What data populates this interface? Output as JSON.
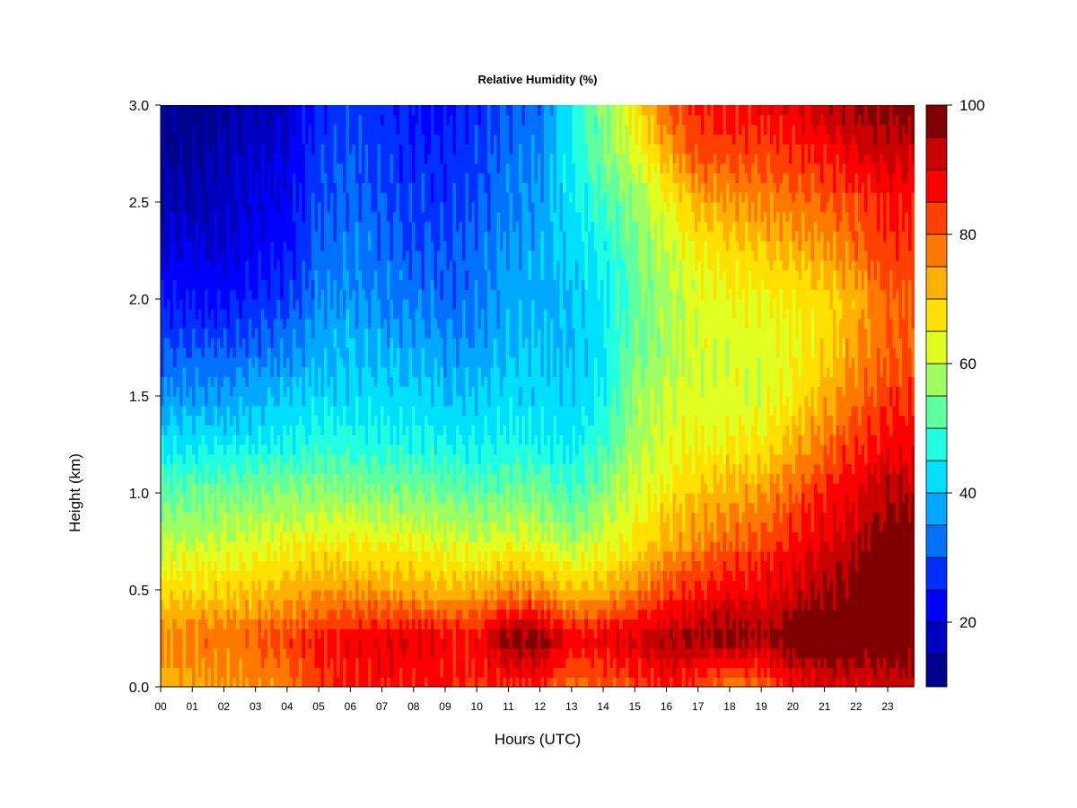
{
  "chart_data": {
    "type": "heatmap",
    "title": "Relative Humidity (%)",
    "xlabel": "Hours (UTC)",
    "ylabel": "Height (km)",
    "xlim": [
      0,
      23.85
    ],
    "ylim": [
      0.0,
      3.0
    ],
    "x_ticks": [
      "00",
      "01",
      "02",
      "03",
      "04",
      "05",
      "06",
      "07",
      "08",
      "09",
      "10",
      "11",
      "12",
      "13",
      "14",
      "15",
      "16",
      "17",
      "18",
      "19",
      "20",
      "21",
      "22",
      "23"
    ],
    "y_ticks": [
      "0.0",
      "0.5",
      "1.0",
      "1.5",
      "2.0",
      "2.5",
      "3.0"
    ],
    "colorbar": {
      "range": [
        10,
        100
      ],
      "levels": [
        10,
        15,
        20,
        25,
        30,
        35,
        40,
        45,
        50,
        55,
        60,
        65,
        70,
        75,
        80,
        85,
        90,
        95,
        100
      ],
      "colors": [
        "#00008F",
        "#0000BF",
        "#0000FF",
        "#0030FF",
        "#0070FF",
        "#00A8FF",
        "#00DFFF",
        "#20FFDF",
        "#60FFA0",
        "#A0FF60",
        "#E0FF20",
        "#FFE000",
        "#FFB000",
        "#FF7800",
        "#FF4000",
        "#FF0000",
        "#C80000",
        "#800000"
      ],
      "tick_labels": [
        "20",
        "40",
        "60",
        "80",
        "100"
      ]
    },
    "hours": [
      0,
      1,
      2,
      3,
      4,
      5,
      6,
      7,
      8,
      9,
      10,
      11,
      12,
      13,
      14,
      15,
      16,
      17,
      18,
      19,
      20,
      21,
      22,
      23
    ],
    "heights_km": [
      0.0,
      0.25,
      0.5,
      0.75,
      1.0,
      1.25,
      1.5,
      1.75,
      2.0,
      2.25,
      2.5,
      2.75,
      3.0
    ],
    "rh_percent": [
      [
        72,
        74,
        74,
        76,
        78,
        84,
        86,
        86,
        86,
        86,
        84,
        84,
        84,
        78,
        80,
        82,
        86,
        82,
        76,
        78,
        88,
        90,
        90,
        92
      ],
      [
        76,
        78,
        78,
        80,
        82,
        86,
        88,
        90,
        90,
        88,
        88,
        98,
        98,
        88,
        90,
        92,
        95,
        96,
        98,
        96,
        99,
        100,
        100,
        100
      ],
      [
        68,
        68,
        69,
        70,
        72,
        74,
        74,
        74,
        73,
        72,
        72,
        76,
        75,
        70,
        72,
        76,
        82,
        86,
        88,
        88,
        92,
        96,
        98,
        100
      ],
      [
        60,
        60,
        61,
        62,
        64,
        65,
        65,
        64,
        64,
        62,
        61,
        63,
        62,
        58,
        62,
        66,
        72,
        76,
        80,
        82,
        86,
        90,
        94,
        98
      ],
      [
        52,
        53,
        54,
        55,
        56,
        56,
        56,
        55,
        55,
        54,
        52,
        54,
        54,
        50,
        56,
        62,
        66,
        70,
        72,
        74,
        80,
        86,
        90,
        94
      ],
      [
        44,
        44,
        44,
        45,
        46,
        48,
        48,
        47,
        47,
        46,
        45,
        46,
        46,
        44,
        50,
        58,
        62,
        64,
        66,
        66,
        72,
        78,
        84,
        88
      ],
      [
        36,
        36,
        36,
        38,
        40,
        42,
        42,
        42,
        42,
        40,
        40,
        42,
        42,
        40,
        46,
        56,
        60,
        62,
        62,
        62,
        66,
        72,
        78,
        84
      ],
      [
        30,
        30,
        30,
        32,
        34,
        38,
        40,
        38,
        38,
        36,
        36,
        40,
        40,
        40,
        44,
        54,
        58,
        62,
        62,
        62,
        64,
        68,
        74,
        80
      ],
      [
        24,
        24,
        24,
        26,
        28,
        34,
        36,
        34,
        34,
        32,
        34,
        38,
        38,
        40,
        44,
        52,
        58,
        62,
        64,
        64,
        66,
        68,
        72,
        80
      ],
      [
        20,
        20,
        20,
        22,
        24,
        32,
        34,
        32,
        30,
        30,
        32,
        36,
        38,
        42,
        46,
        54,
        60,
        66,
        68,
        70,
        72,
        74,
        78,
        84
      ],
      [
        16,
        16,
        18,
        20,
        22,
        30,
        32,
        30,
        28,
        28,
        30,
        34,
        36,
        44,
        50,
        56,
        64,
        72,
        74,
        76,
        78,
        80,
        82,
        86
      ],
      [
        14,
        14,
        16,
        18,
        20,
        28,
        30,
        28,
        26,
        26,
        28,
        32,
        34,
        46,
        54,
        62,
        72,
        82,
        82,
        82,
        84,
        86,
        90,
        92
      ],
      [
        12,
        12,
        14,
        16,
        18,
        26,
        28,
        26,
        24,
        24,
        26,
        30,
        32,
        46,
        56,
        66,
        80,
        86,
        88,
        88,
        90,
        94,
        96,
        98
      ]
    ]
  }
}
